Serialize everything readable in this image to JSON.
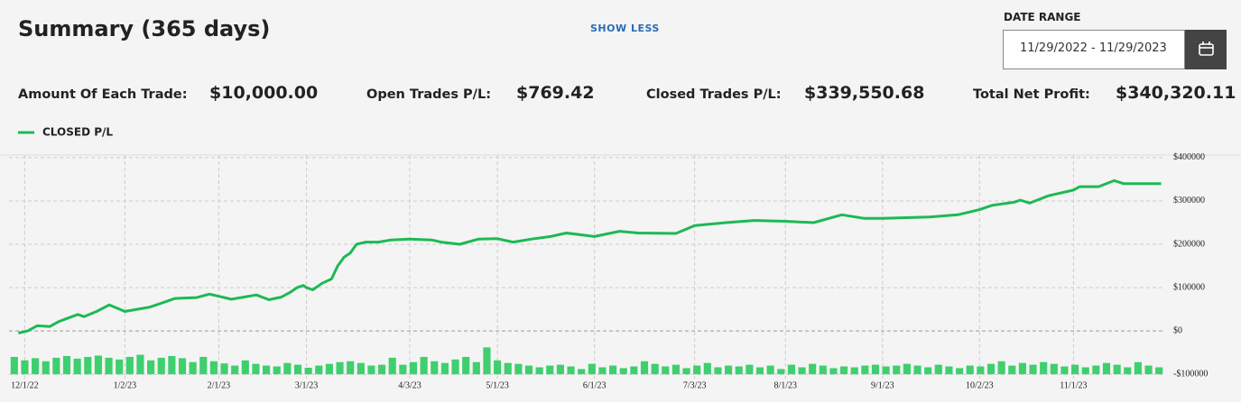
{
  "header": {
    "title": "Summary (365 days)",
    "toggle": "SHOW LESS",
    "date_range_label": "DATE RANGE",
    "date_range": "11/29/2022 - 11/29/2023"
  },
  "stats": [
    {
      "label": "Amount Of Each Trade:",
      "value": "$10,000.00"
    },
    {
      "label": "Open Trades P/L:",
      "value": "$769.42"
    },
    {
      "label": "Closed Trades P/L:",
      "value": "$339,550.68"
    },
    {
      "label": "Total Net Profit:",
      "value": "$340,320.11"
    }
  ],
  "chart_data": {
    "type": "line",
    "grid": true,
    "xlim": [
      "11/26/22",
      "11/30/23"
    ],
    "xticks": [
      "12/1/22",
      "1/2/23",
      "2/1/23",
      "3/1/23",
      "4/3/23",
      "5/1/23",
      "6/1/23",
      "7/3/23",
      "8/1/23",
      "9/1/23",
      "10/2/23",
      "11/1/23"
    ],
    "ylim": [
      -110000,
      406000
    ],
    "yticks": [
      {
        "value": 400000,
        "label": "$400000"
      },
      {
        "value": 300000,
        "label": "$300000"
      },
      {
        "value": 200000,
        "label": "$200000"
      },
      {
        "value": 100000,
        "label": "$100000"
      },
      {
        "value": 0,
        "label": "$0"
      },
      {
        "value": -100000,
        "label": "-$100000"
      }
    ],
    "series": [
      {
        "name": "CLOSED P/L",
        "color": "#1db954",
        "x": [
          "11/29/22",
          "12/2/22",
          "12/5/22",
          "12/9/22",
          "12/12/22",
          "12/15/22",
          "12/18/22",
          "12/20/22",
          "12/24/22",
          "12/28/22",
          "1/2/23",
          "1/6/23",
          "1/10/23",
          "1/14/23",
          "1/18/23",
          "1/25/23",
          "1/29/23",
          "2/1/23",
          "2/5/23",
          "2/9/23",
          "2/13/23",
          "2/17/23",
          "2/21/23",
          "2/24/23",
          "2/26/23",
          "2/28/23",
          "3/1/23",
          "3/3/23",
          "3/6/23",
          "3/9/23",
          "3/11/23",
          "3/13/23",
          "3/15/23",
          "3/17/23",
          "3/20/23",
          "3/24/23",
          "3/28/23",
          "4/3/23",
          "4/10/23",
          "4/13/23",
          "4/19/23",
          "4/25/23",
          "5/1/23",
          "5/6/23",
          "5/12/23",
          "5/18/23",
          "5/23/23",
          "6/1/23",
          "6/9/23",
          "6/15/23",
          "6/27/23",
          "7/3/23",
          "7/13/23",
          "7/22/23",
          "8/1/23",
          "8/10/23",
          "8/19/23",
          "8/26/23",
          "9/1/23",
          "9/16/23",
          "9/25/23",
          "10/2/23",
          "10/6/23",
          "10/13/23",
          "10/15/23",
          "10/18/23",
          "10/24/23",
          "11/1/23",
          "11/3/23",
          "11/9/23",
          "11/14/23",
          "11/17/23",
          "11/29/23"
        ],
        "values": [
          -5000,
          0,
          12000,
          10000,
          22000,
          30000,
          38000,
          33000,
          45000,
          60000,
          45000,
          50000,
          55000,
          65000,
          75000,
          77000,
          85000,
          80000,
          73000,
          78000,
          83000,
          72000,
          78000,
          90000,
          100000,
          105000,
          100000,
          95000,
          110000,
          120000,
          150000,
          170000,
          180000,
          200000,
          205000,
          205000,
          210000,
          212000,
          210000,
          205000,
          200000,
          212000,
          213000,
          205000,
          212000,
          218000,
          226000,
          218000,
          230000,
          226000,
          225000,
          243000,
          250000,
          255000,
          253000,
          250000,
          268000,
          260000,
          260000,
          263000,
          268000,
          280000,
          290000,
          297000,
          302000,
          295000,
          312000,
          325000,
          333000,
          333000,
          347000,
          340000,
          340000
        ]
      }
    ],
    "bars": {
      "color": "#3fcf6e",
      "values": [
        -60000,
        -68000,
        -63000,
        -70000,
        -62000,
        -58000,
        -64000,
        -60000,
        -57000,
        -62000,
        -66000,
        -60000,
        -55000,
        -68000,
        -62000,
        -58000,
        -63000,
        -72000,
        -60000,
        -70000,
        -75000,
        -80000,
        -68000,
        -76000,
        -80000,
        -82000,
        -74000,
        -78000,
        -85000,
        -80000,
        -76000,
        -72000,
        -70000,
        -74000,
        -80000,
        -78000,
        -62000,
        -78000,
        -72000,
        -60000,
        -70000,
        -74000,
        -66000,
        -60000,
        -72000,
        -38000,
        -68000,
        -74000,
        -76000,
        -80000,
        -84000,
        -80000,
        -78000,
        -82000,
        -88000,
        -76000,
        -84000,
        -80000,
        -86000,
        -82000,
        -70000,
        -76000,
        -82000,
        -78000,
        -86000,
        -80000,
        -74000,
        -84000,
        -80000,
        -82000,
        -78000,
        -84000,
        -80000,
        -88000,
        -78000,
        -84000,
        -76000,
        -80000,
        -86000,
        -82000,
        -84000,
        -80000,
        -78000,
        -82000,
        -80000,
        -76000,
        -80000,
        -84000,
        -78000,
        -82000,
        -86000,
        -80000,
        -82000,
        -76000,
        -70000,
        -80000,
        -74000,
        -78000,
        -72000,
        -76000,
        -82000,
        -78000,
        -84000,
        -80000,
        -74000,
        -78000,
        -84000,
        -72000,
        -80000,
        -84000
      ]
    }
  }
}
